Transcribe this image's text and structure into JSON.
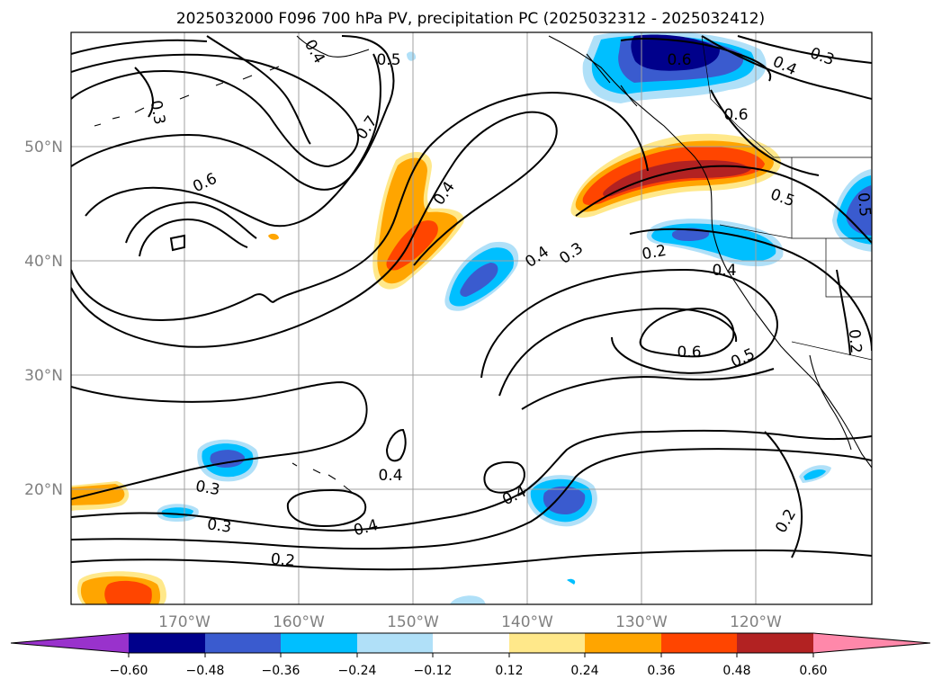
{
  "title": "2025032000 F096 700 hPa PV, precipitation PC (2025032312 - 2025032412)",
  "lat_labels": [
    "50°N",
    "40°N",
    "30°N",
    "20°N"
  ],
  "lon_labels": [
    "170°W",
    "160°W",
    "150°W",
    "140°W",
    "130°W",
    "120°W"
  ],
  "colorbar": {
    "ticks": [
      "−0.60",
      "−0.48",
      "−0.36",
      "−0.24",
      "−0.12",
      "0.12",
      "0.24",
      "0.36",
      "0.48",
      "0.60"
    ],
    "colors": {
      "under": "#9932cc",
      "n60": "#00008b",
      "n48": "#3a5bcf",
      "n36": "#00bfff",
      "n24": "#b0e0f8",
      "zero": "#ffffff",
      "p12": "#ffe88a",
      "p24": "#ffa500",
      "p36": "#ff4500",
      "p48": "#b22222",
      "over": "#ff88aa"
    }
  },
  "contour_labels": [
    "0.3",
    "0.5",
    "0.4",
    "0.3",
    "0.6",
    "0.7",
    "0.6",
    "0.4",
    "0.4",
    "0.3",
    "0.2",
    "0.5",
    "0.4",
    "0.4",
    "0.6",
    "0.5",
    "0.2",
    "0.3",
    "0.3",
    "0.4",
    "0.4",
    "0.4",
    "0.2",
    "0.2",
    "0.6",
    "0.5"
  ]
}
